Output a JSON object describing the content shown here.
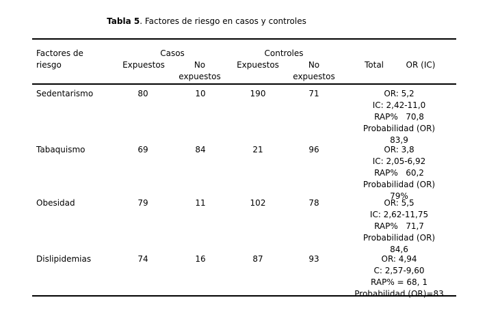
{
  "title": {
    "bold": "Tabla 5",
    "rest": ". Factores de riesgo en casos y controles"
  },
  "table": {
    "headers": {
      "factor": "Factores de riesgo",
      "casos": "Casos",
      "controles": "Controles",
      "expuestos": "Expuestos",
      "no_expuestos": "No expuestos",
      "total": "Total",
      "or_ic": "OR (IC)"
    },
    "rows": [
      {
        "factor": "Sedentarismo",
        "casos_expuestos": "80",
        "casos_no_expuestos": "10",
        "controles_expuestos": "190",
        "controles_no_expuestos": "71",
        "or_lines": [
          "OR: 5,2",
          "IC: 2,42-11,0",
          "RAP%   70,8",
          "Probabilidad (OR)",
          "83,9"
        ]
      },
      {
        "factor": "Tabaquismo",
        "casos_expuestos": "69",
        "casos_no_expuestos": "84",
        "controles_expuestos": "21",
        "controles_no_expuestos": "96",
        "or_lines": [
          "OR: 3,8",
          "IC: 2,05-6,92",
          "RAP%   60,2",
          "Probabilidad (OR)",
          "79%"
        ]
      },
      {
        "factor": "Obesidad",
        "casos_expuestos": "79",
        "casos_no_expuestos": "11",
        "controles_expuestos": "102",
        "controles_no_expuestos": "78",
        "or_lines": [
          "OR: 5,5",
          "IC: 2,62-11,75",
          "RAP%   71,7",
          "Probabilidad (OR)",
          "84,6"
        ]
      },
      {
        "factor": "Dislipidemias",
        "casos_expuestos": "74",
        "casos_no_expuestos": "16",
        "controles_expuestos": "87",
        "controles_no_expuestos": "93",
        "or_lines": [
          "OR: 4,94",
          "C: 2,57-9,60",
          "RAP% = 68, 1",
          "Probabilidad (OR)=83"
        ]
      }
    ]
  }
}
